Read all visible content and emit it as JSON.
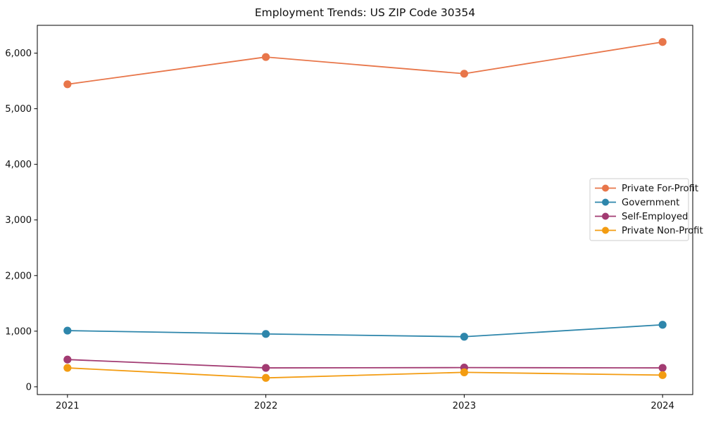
{
  "chart_data": {
    "type": "line",
    "title": "Employment Trends: US ZIP Code 30354",
    "categories": [
      "2021",
      "2022",
      "2023",
      "2024"
    ],
    "series": [
      {
        "name": "Private For-Profit",
        "color": "#e8764a",
        "values": [
          5440,
          5930,
          5630,
          6200
        ]
      },
      {
        "name": "Government",
        "color": "#2e86ab",
        "values": [
          1010,
          950,
          900,
          1115
        ]
      },
      {
        "name": "Self-Employed",
        "color": "#a23b72",
        "values": [
          490,
          340,
          345,
          340
        ]
      },
      {
        "name": "Private Non-Profit",
        "color": "#f39c12",
        "values": [
          340,
          160,
          260,
          210
        ]
      }
    ],
    "xlabel": "",
    "ylabel": "",
    "ylim": [
      -140,
      6500
    ],
    "y_ticks": [
      0,
      1000,
      2000,
      3000,
      4000,
      5000,
      6000
    ],
    "y_tick_labels": [
      "0",
      "1,000",
      "2,000",
      "3,000",
      "4,000",
      "5,000",
      "6,000"
    ],
    "grid": false,
    "legend_position": "center-right",
    "marker": "circle"
  }
}
